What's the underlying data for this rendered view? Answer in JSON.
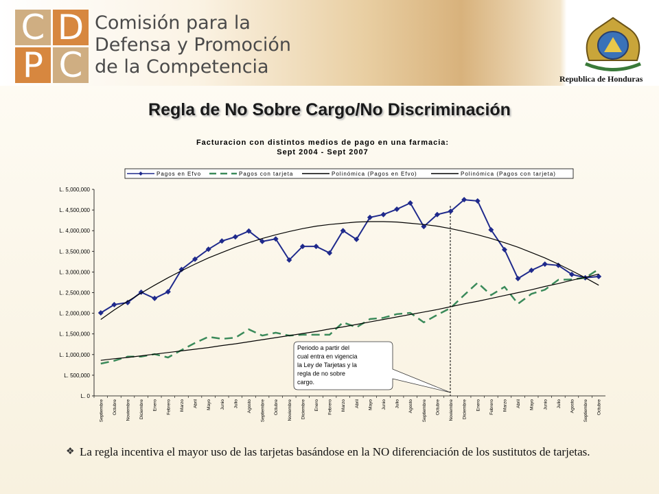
{
  "header": {
    "logo_letters": [
      "C",
      "D",
      "P",
      "C"
    ],
    "org_name": [
      "Comisión para la",
      "Defensa y Promoción",
      "de la Competencia"
    ],
    "country": "Republica de Honduras"
  },
  "slide_title": "Regla de No Sobre Cargo/No Discriminación",
  "chart_data": {
    "type": "line",
    "title": [
      "Facturacion con distintos medios de pago en una farmacia:",
      "Sept 2004 - Sept 2007"
    ],
    "categories": [
      "Septiembre",
      "Octubre",
      "Noviembre",
      "Diciembre",
      "Enero",
      "Febrero",
      "Marzo",
      "Abril",
      "Mayo",
      "Junio",
      "Julio",
      "Agosto",
      "Septiembre",
      "Octubre",
      "Noviembre",
      "Diciembre",
      "Enero",
      "Febrero",
      "Marzo",
      "Abril",
      "Mayo",
      "Junio",
      "Julio",
      "Agosto",
      "Septiembre",
      "Octubre",
      "Noviembre",
      "Diciembre",
      "Enero",
      "Febrero",
      "Marzo",
      "Abril",
      "Mayo",
      "Junio",
      "Julio",
      "Agosto",
      "Septiembre",
      "Octubre"
    ],
    "series": [
      {
        "name": "Pagos en Efvo",
        "color": "#1f2a8c",
        "marker": "diamond",
        "dashed": false,
        "values": [
          2010000,
          2210000,
          2260000,
          2510000,
          2360000,
          2520000,
          3060000,
          3310000,
          3550000,
          3750000,
          3850000,
          3990000,
          3740000,
          3800000,
          3290000,
          3620000,
          3620000,
          3460000,
          4000000,
          3790000,
          4320000,
          4390000,
          4520000,
          4670000,
          4100000,
          4390000,
          4470000,
          4750000,
          4720000,
          4020000,
          3540000,
          2840000,
          3040000,
          3190000,
          3160000,
          2940000,
          2860000,
          2890000
        ]
      },
      {
        "name": "Pagos con tarjeta",
        "color": "#3a8a5a",
        "marker": "none",
        "dashed": true,
        "values": [
          780000,
          850000,
          950000,
          950000,
          1010000,
          930000,
          1110000,
          1280000,
          1430000,
          1380000,
          1410000,
          1610000,
          1460000,
          1530000,
          1460000,
          1480000,
          1480000,
          1480000,
          1780000,
          1660000,
          1860000,
          1890000,
          1980000,
          2010000,
          1780000,
          1960000,
          2130000,
          2440000,
          2740000,
          2440000,
          2640000,
          2230000,
          2470000,
          2570000,
          2810000,
          2820000,
          2860000,
          3070000
        ]
      },
      {
        "name": "Polinómica (Pagos en Efvo)",
        "color": "#000000",
        "marker": "none",
        "dashed": false,
        "values": [
          1850000,
          2080000,
          2290000,
          2490000,
          2680000,
          2860000,
          3030000,
          3190000,
          3340000,
          3470000,
          3600000,
          3710000,
          3810000,
          3900000,
          3980000,
          4050000,
          4110000,
          4150000,
          4180000,
          4210000,
          4220000,
          4220000,
          4210000,
          4180000,
          4150000,
          4110000,
          4050000,
          3980000,
          3900000,
          3810000,
          3710000,
          3600000,
          3470000,
          3340000,
          3190000,
          3030000,
          2860000,
          2680000
        ]
      },
      {
        "name": "Polinómica (Pagos con tarjeta)",
        "color": "#000000",
        "marker": "none",
        "dashed": false,
        "values": [
          860000,
          900000,
          930000,
          970000,
          1010000,
          1050000,
          1090000,
          1130000,
          1170000,
          1220000,
          1260000,
          1310000,
          1360000,
          1410000,
          1460000,
          1510000,
          1560000,
          1620000,
          1670000,
          1730000,
          1790000,
          1850000,
          1910000,
          1970000,
          2030000,
          2090000,
          2160000,
          2230000,
          2290000,
          2360000,
          2430000,
          2500000,
          2570000,
          2650000,
          2720000,
          2800000,
          2870000,
          2950000
        ]
      }
    ],
    "ylim": [
      0,
      5000000
    ],
    "yticks": [
      {
        "value": 0,
        "label": "L. 0"
      },
      {
        "value": 500000,
        "label": "L. 500,000"
      },
      {
        "value": 1000000,
        "label": "L. 1,000,000"
      },
      {
        "value": 1500000,
        "label": "L. 1,500,000"
      },
      {
        "value": 2000000,
        "label": "L. 2,000,000"
      },
      {
        "value": 2500000,
        "label": "L. 2,500,000"
      },
      {
        "value": 3000000,
        "label": "L. 3,000,000"
      },
      {
        "value": 3500000,
        "label": "L. 3,500,000"
      },
      {
        "value": 4000000,
        "label": "L. 4,000,000"
      },
      {
        "value": 4500000,
        "label": "L. 4,500,000"
      },
      {
        "value": 5000000,
        "label": "L. 5,000,000"
      }
    ],
    "grid": false,
    "legend": "top",
    "annotation": [
      "Periodo a partir del",
      "cual entra en vigencia",
      "la Ley de Tarjetas y la",
      "regla de no sobre",
      "cargo."
    ]
  },
  "bullets": [
    "La regla incentiva el mayor uso de las tarjetas basándose en la NO diferenciación de los sustitutos de tarjetas."
  ]
}
